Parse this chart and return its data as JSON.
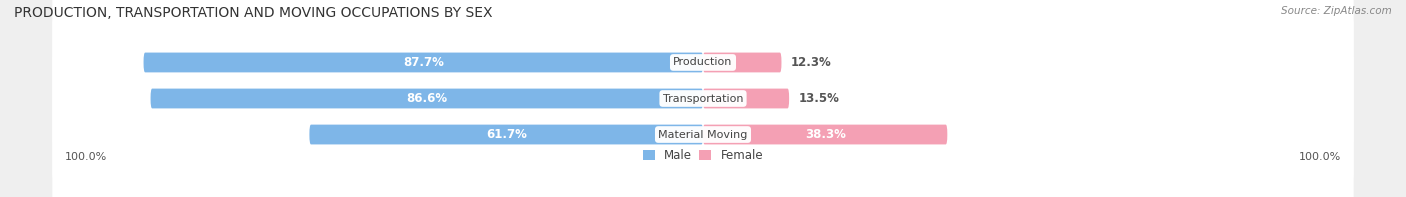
{
  "title": "PRODUCTION, TRANSPORTATION AND MOVING OCCUPATIONS BY SEX",
  "source": "Source: ZipAtlas.com",
  "categories": [
    "Production",
    "Transportation",
    "Material Moving"
  ],
  "male_values": [
    87.7,
    86.6,
    61.7
  ],
  "female_values": [
    12.3,
    13.5,
    38.3
  ],
  "male_color": "#7EB6E8",
  "female_color": "#F4A0B4",
  "male_label_color": "#FFFFFF",
  "female_label_color_inside": "#FFFFFF",
  "female_label_color_outside": "#555555",
  "bg_color": "#EFEFEF",
  "bar_bg_color": "#FFFFFF",
  "cat_label_color": "#444444",
  "title_color": "#333333",
  "source_color": "#888888",
  "axis_label_color": "#555555",
  "title_fontsize": 10,
  "source_fontsize": 7.5,
  "value_fontsize": 8.5,
  "cat_fontsize": 8,
  "axis_fontsize": 8,
  "legend_fontsize": 8.5,
  "axis_label_left": "100.0%",
  "axis_label_right": "100.0%",
  "female_outside_threshold": 20
}
